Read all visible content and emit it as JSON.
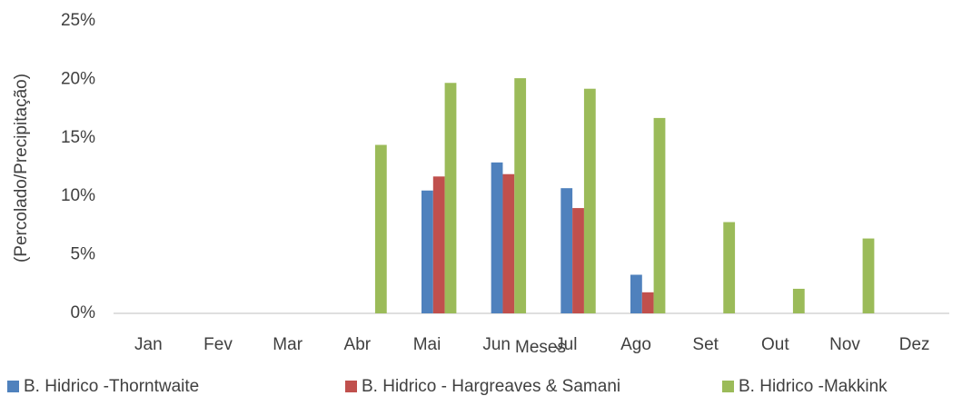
{
  "chart_data": {
    "type": "bar",
    "x_label": "Meses",
    "y_label": "(Percolado/Precipitação)",
    "categories": [
      "Jan",
      "Fev",
      "Mar",
      "Abr",
      "Mai",
      "Jun",
      "Jul",
      "Ago",
      "Set",
      "Out",
      "Nov",
      "Dez"
    ],
    "series": [
      {
        "name": "B. Hidrico -Thorntwaite",
        "color": "#4f81bd",
        "values": [
          0,
          0,
          0,
          0,
          10.5,
          12.9,
          10.7,
          3.3,
          0,
          0,
          0,
          0
        ]
      },
      {
        "name": "B. Hidrico - Hargreaves & Samani",
        "color": "#c0504d",
        "values": [
          0,
          0,
          0,
          0,
          11.7,
          11.9,
          9.0,
          1.8,
          0,
          0,
          0,
          0
        ]
      },
      {
        "name": "B. Hidrico -Makkink",
        "color": "#9bbb59",
        "values": [
          0,
          0,
          0,
          14.4,
          19.7,
          20.1,
          19.2,
          16.7,
          7.8,
          2.1,
          6.4,
          0
        ]
      }
    ],
    "ylim": [
      0,
      25
    ],
    "yticks": [
      {
        "value": 0,
        "label": "0%"
      },
      {
        "value": 5,
        "label": "5%"
      },
      {
        "value": 10,
        "label": "10%"
      },
      {
        "value": 15,
        "label": "15%"
      },
      {
        "value": 20,
        "label": "20%"
      },
      {
        "value": 25,
        "label": "25%"
      }
    ],
    "grid": false,
    "legend": "bottom"
  }
}
